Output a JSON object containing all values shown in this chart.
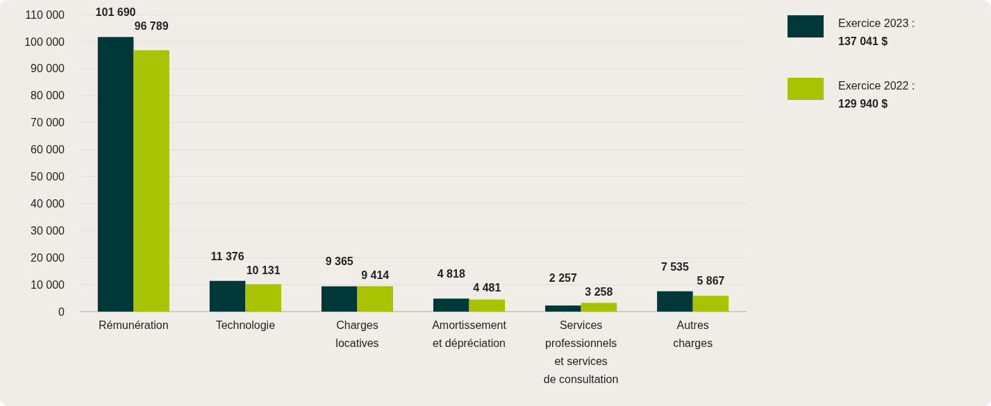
{
  "chart_data": {
    "type": "bar",
    "categories": [
      "Rémunération",
      "Technologie",
      "Charges\nlocatives",
      "Amortissement\net dépréciation",
      "Services\nprofessionnels\net services\nde consultation",
      "Autres\ncharges"
    ],
    "series": [
      {
        "name": "Exercice 2023 :\n137 041 $",
        "color": "#00383a",
        "values": [
          101690,
          11376,
          9365,
          4818,
          2257,
          7535
        ]
      },
      {
        "name": "Exercice 2022 :\n129 940 $",
        "color": "#a8c204",
        "values": [
          96789,
          10131,
          9414,
          4481,
          3258,
          5867
        ]
      }
    ],
    "ylim": [
      0,
      110000
    ],
    "yticks": [
      {
        "value": 0,
        "label": "0"
      },
      {
        "value": 10000,
        "label": "10 000"
      },
      {
        "value": 20000,
        "label": "20 000"
      },
      {
        "value": 30000,
        "label": "30 000"
      },
      {
        "value": 40000,
        "label": "40 000"
      },
      {
        "value": 50000,
        "label": "50 000"
      },
      {
        "value": 60000,
        "label": "60 000"
      },
      {
        "value": 70000,
        "label": "70 000"
      },
      {
        "value": 80000,
        "label": "80 000"
      },
      {
        "value": 90000,
        "label": "90 000"
      },
      {
        "value": 100000,
        "label": "100 000"
      },
      {
        "value": 110000,
        "label": "110 000"
      }
    ],
    "grid": "y",
    "legend": "right",
    "data_labels": true
  }
}
